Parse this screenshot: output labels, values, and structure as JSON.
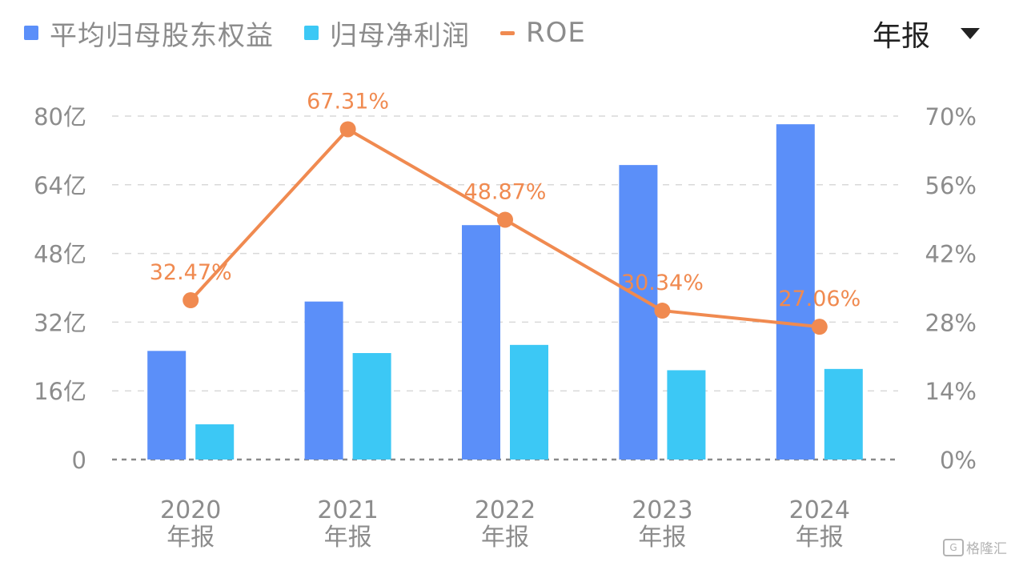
{
  "legend": {
    "equity": "平均归母股东权益",
    "profit": "归母净利润",
    "roe": "ROE"
  },
  "period_selector": {
    "label": "年报",
    "icon": "caret-down-icon"
  },
  "watermark": {
    "text": "格隆汇",
    "icon": "gelonghui-logo-icon"
  },
  "colors": {
    "equity": "#5b8ff9",
    "profit": "#3cc8f5",
    "roe": "#f08a50",
    "grid": "#d9d9d9",
    "axis_text": "#8c8c8c"
  },
  "chart_data": {
    "type": "bar",
    "categories": [
      [
        "2020",
        "年报"
      ],
      [
        "2021",
        "年报"
      ],
      [
        "2022",
        "年报"
      ],
      [
        "2023",
        "年报"
      ],
      [
        "2024",
        "年报"
      ]
    ],
    "series": [
      {
        "name": "平均归母股东权益",
        "type": "bar",
        "axis": "left",
        "values": [
          25.3,
          36.8,
          54.6,
          68.6,
          78.1
        ]
      },
      {
        "name": "归母净利润",
        "type": "bar",
        "axis": "left",
        "values": [
          8.2,
          24.8,
          26.7,
          20.8,
          21.1
        ]
      },
      {
        "name": "ROE",
        "type": "line",
        "axis": "right",
        "values": [
          32.47,
          67.31,
          48.87,
          30.34,
          27.06
        ],
        "labels": [
          "32.47%",
          "67.31%",
          "48.87%",
          "30.34%",
          "27.06%"
        ]
      }
    ],
    "y_left": {
      "ylim": [
        0,
        80
      ],
      "ticks": [
        "0",
        "16亿",
        "32亿",
        "48亿",
        "64亿",
        "80亿"
      ]
    },
    "y_right": {
      "ylim": [
        0,
        70
      ],
      "ticks": [
        "0%",
        "14%",
        "28%",
        "42%",
        "56%",
        "70%"
      ]
    },
    "grid": true,
    "legend_position": "top-left"
  }
}
